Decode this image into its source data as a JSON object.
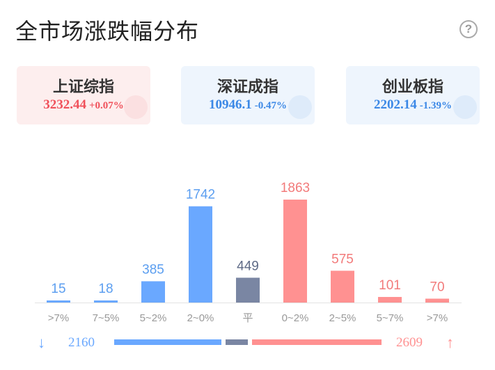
{
  "title": "全市场涨跌幅分布",
  "help_icon": "?",
  "indices": [
    {
      "name": "上证综指",
      "price": "3232.44",
      "change": "+0.07%",
      "trend": "up"
    },
    {
      "name": "深证成指",
      "price": "10946.1",
      "change": "-0.47%",
      "trend": "down"
    },
    {
      "name": "创业板指",
      "price": "2202.14",
      "change": "-1.39%",
      "trend": "down"
    }
  ],
  "colors": {
    "up": "#ff9191",
    "down": "#6aa8ff",
    "flat": "#7a86a3",
    "up_text": "#f27a7a",
    "down_text": "#5b9ef0",
    "flat_text": "#5e6a86"
  },
  "chart_data": {
    "type": "bar",
    "categories": [
      ">7%",
      "7~5%",
      "5~2%",
      "2~0%",
      "平",
      "0~2%",
      "2~5%",
      "5~7%",
      ">7%"
    ],
    "values": [
      15,
      18,
      385,
      1742,
      449,
      1863,
      575,
      101,
      70
    ],
    "groups": [
      "down",
      "down",
      "down",
      "down",
      "flat",
      "up",
      "up",
      "up",
      "up"
    ],
    "ylim": [
      0,
      1863
    ]
  },
  "summary": {
    "down_total": "2160",
    "up_total": "2609",
    "down_icon": "arrow-down-icon",
    "up_icon": "arrow-up-icon"
  }
}
